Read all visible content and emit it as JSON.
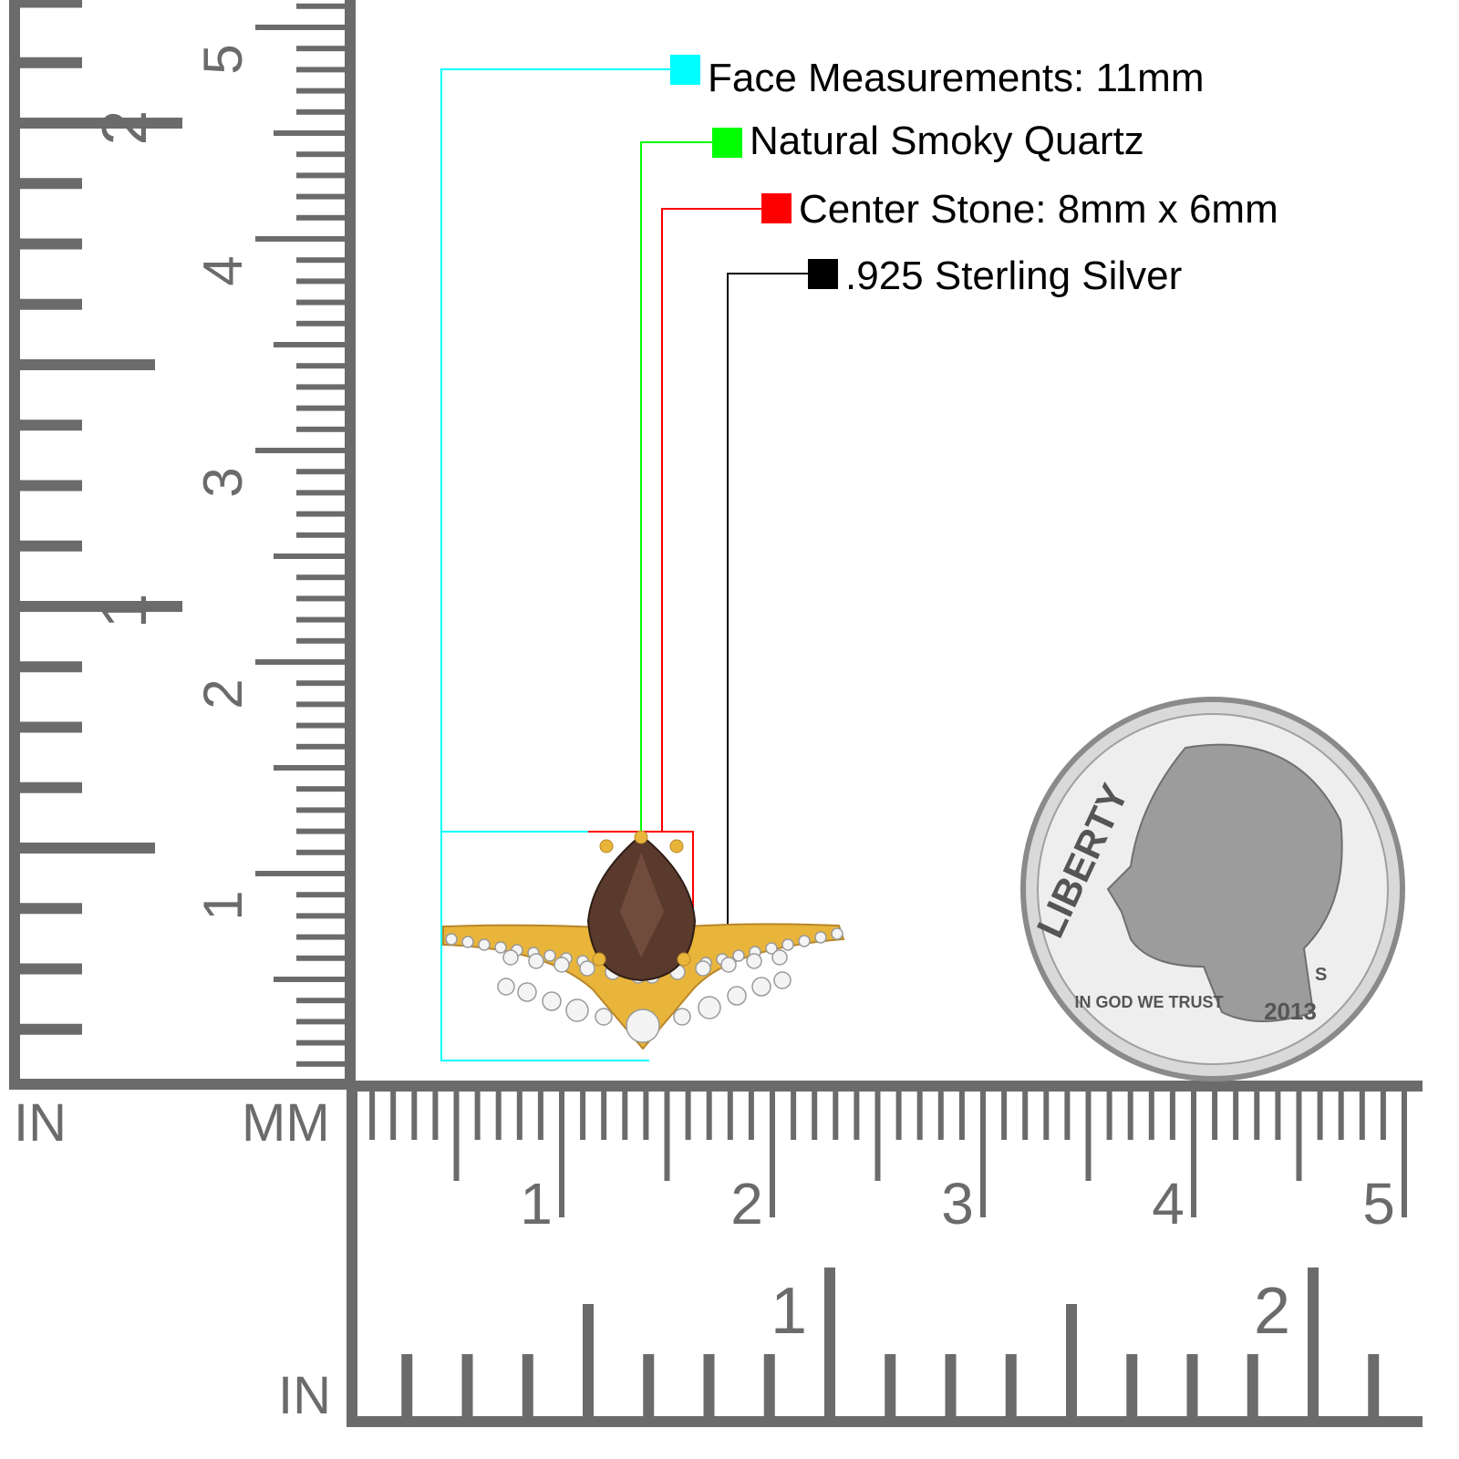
{
  "callouts": [
    {
      "text": "Face Measurements: 11mm",
      "color": "#00ffff"
    },
    {
      "text": "Natural Smoky Quartz",
      "color": "#00ff00"
    },
    {
      "text": "Center Stone: 8mm x 6mm",
      "color": "#ff0000"
    },
    {
      "text": ".925 Sterling Silver",
      "color": "#000000"
    }
  ],
  "rulers": {
    "vertical": {
      "in_labels": [
        "1",
        "2"
      ],
      "mm_labels": [
        "1",
        "2",
        "3",
        "4",
        "5"
      ]
    },
    "horizontal": {
      "mm_labels": [
        "1",
        "2",
        "3",
        "4",
        "5"
      ],
      "in_labels": [
        "1",
        "2"
      ]
    },
    "unit_in_left": "IN",
    "unit_mm": "MM",
    "unit_in_bottom": "IN",
    "color": "#6b6b6b"
  },
  "coin": {
    "legend": "LIBERTY",
    "motto": "IN GOD WE TRUST",
    "year": "2013",
    "mint": "S"
  },
  "product": {
    "metal_color": "#e8b53a",
    "stone_color": "#5a3a2c"
  }
}
